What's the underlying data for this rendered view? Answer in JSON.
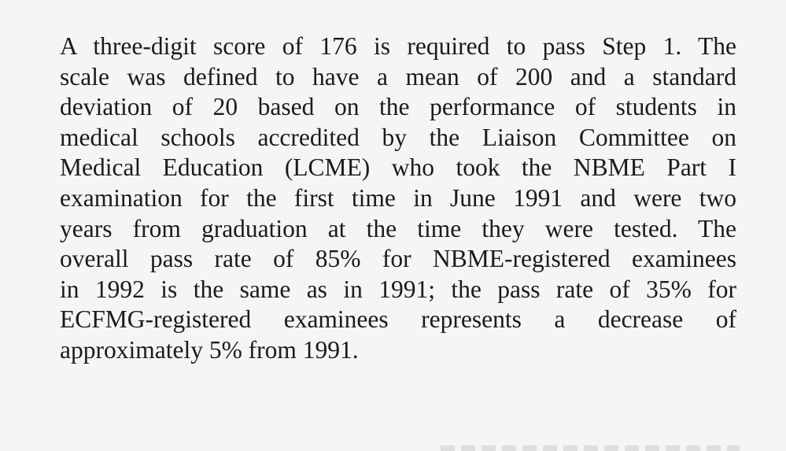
{
  "document": {
    "lines": [
      "A three-digit score of 176 is required to pass Step 1.  The",
      "scale was defined to have a mean of 200 and a standard",
      "deviation of 20 based on the performance of students in",
      "medical schools accredited by the Liaison Committee on",
      "Medical Education (LCME) who took the NBME Part I",
      "examination for the first time in June 1991 and were two",
      "years from graduation at the time they were tested.  The",
      "overall pass rate of 85% for NBME-registered examinees",
      "in 1992 is the same as in 1991; the pass rate of 35% for",
      "ECFMG-registered examinees represents a decrease of",
      "approximately 5% from 1991."
    ]
  }
}
